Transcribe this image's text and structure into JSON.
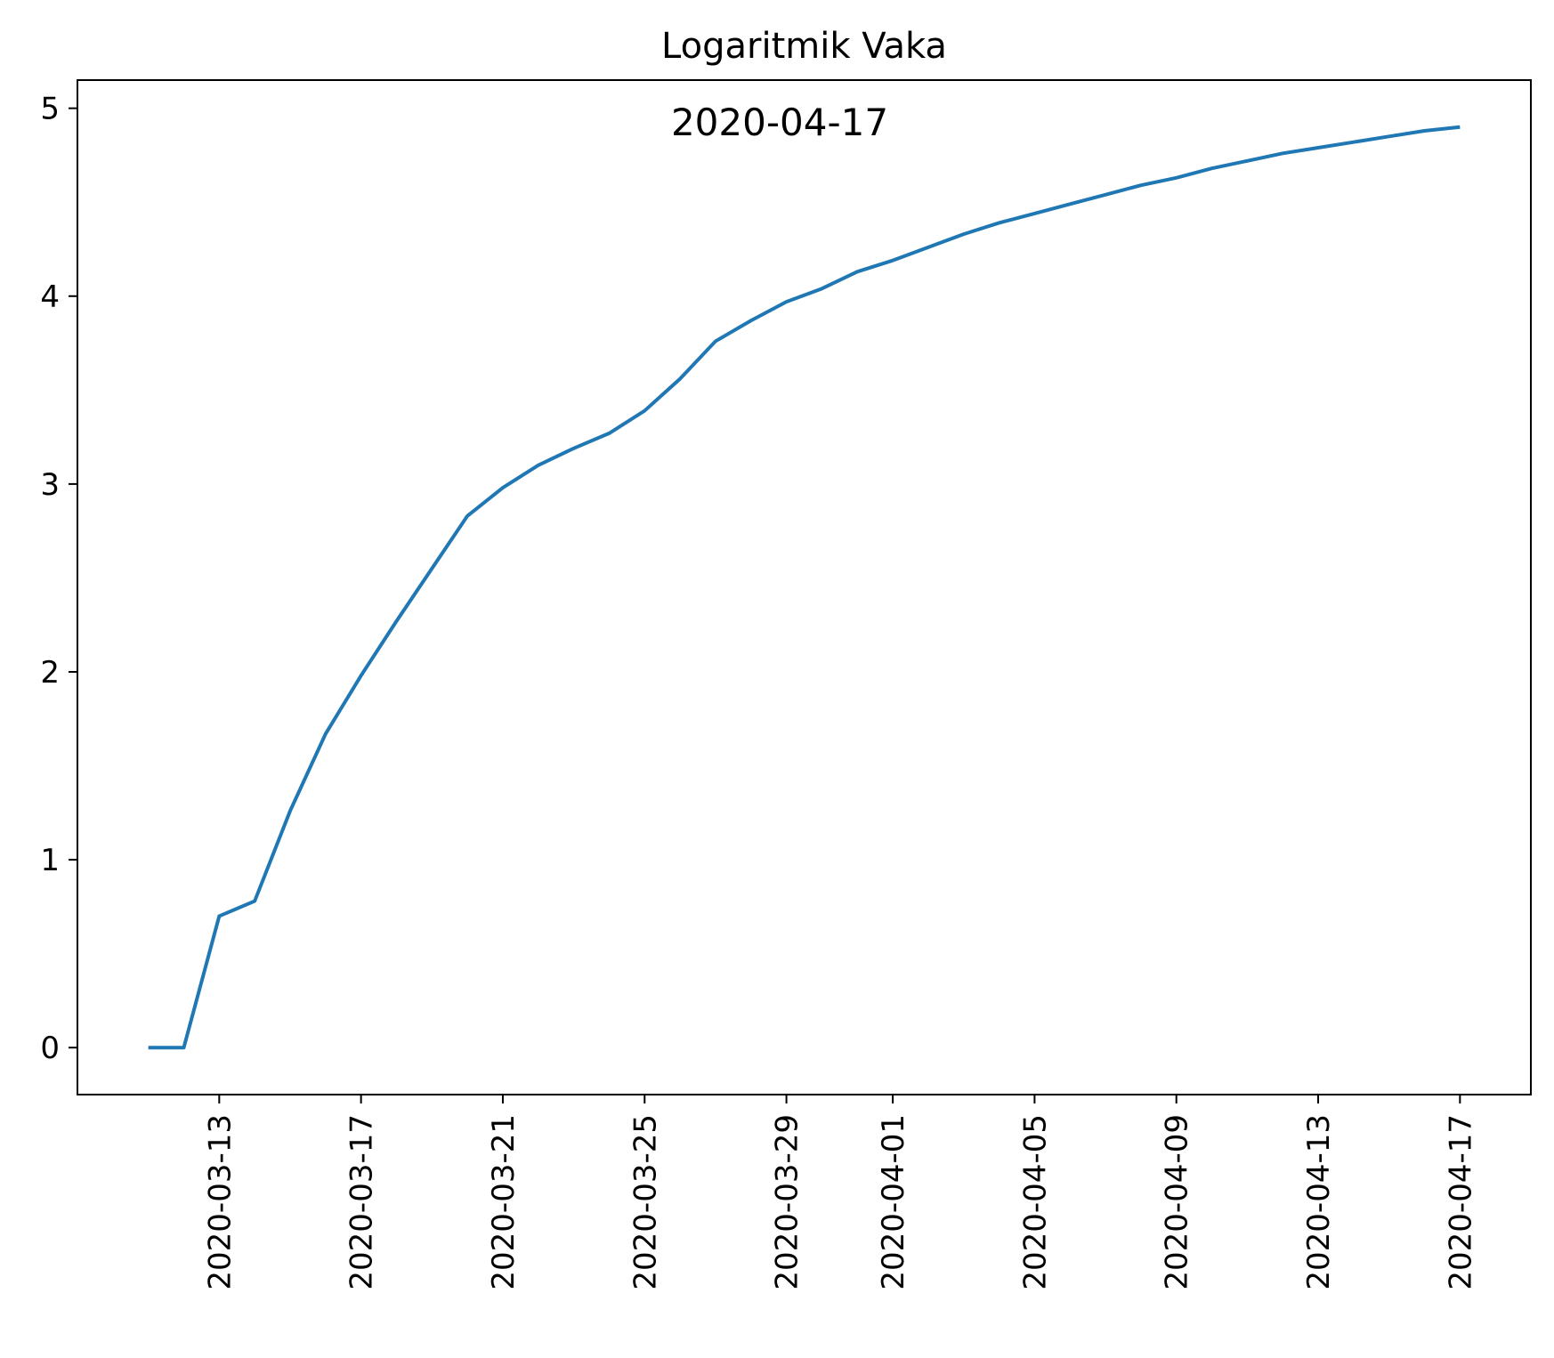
{
  "chart_data": {
    "type": "line",
    "title": "Logaritmik Vaka",
    "annotation": "2020-04-17",
    "xlabel": "",
    "ylabel": "",
    "x_axis": {
      "type": "date",
      "range": [
        "2020-03-09",
        "2020-04-19"
      ],
      "tick_labels": [
        "2020-03-13",
        "2020-03-17",
        "2020-03-21",
        "2020-03-25",
        "2020-03-29",
        "2020-04-01",
        "2020-04-05",
        "2020-04-09",
        "2020-04-13",
        "2020-04-17"
      ],
      "tick_label_rotation": "vertical"
    },
    "y_axis": {
      "range": [
        -0.25,
        5.15
      ],
      "ticks": [
        0,
        1,
        2,
        3,
        4,
        5
      ],
      "tick_labels": [
        "0",
        "1",
        "2",
        "3",
        "4",
        "5"
      ]
    },
    "grid": false,
    "series": [
      {
        "color": "#1f77b4",
        "x": [
          "2020-03-11",
          "2020-03-12",
          "2020-03-13",
          "2020-03-14",
          "2020-03-15",
          "2020-03-16",
          "2020-03-17",
          "2020-03-18",
          "2020-03-19",
          "2020-03-20",
          "2020-03-21",
          "2020-03-22",
          "2020-03-23",
          "2020-03-24",
          "2020-03-25",
          "2020-03-26",
          "2020-03-27",
          "2020-03-28",
          "2020-03-29",
          "2020-03-30",
          "2020-03-31",
          "2020-04-01",
          "2020-04-02",
          "2020-04-03",
          "2020-04-04",
          "2020-04-05",
          "2020-04-06",
          "2020-04-07",
          "2020-04-08",
          "2020-04-09",
          "2020-04-10",
          "2020-04-11",
          "2020-04-12",
          "2020-04-13",
          "2020-04-14",
          "2020-04-15",
          "2020-04-16",
          "2020-04-17"
        ],
        "y": [
          0,
          0,
          0.7,
          0.78,
          1.26,
          1.67,
          1.98,
          2.27,
          2.55,
          2.83,
          2.98,
          3.1,
          3.19,
          3.27,
          3.39,
          3.56,
          3.76,
          3.87,
          3.97,
          4.04,
          4.13,
          4.19,
          4.26,
          4.33,
          4.39,
          4.44,
          4.49,
          4.54,
          4.59,
          4.63,
          4.68,
          4.72,
          4.76,
          4.79,
          4.82,
          4.85,
          4.88,
          4.9
        ]
      }
    ]
  }
}
